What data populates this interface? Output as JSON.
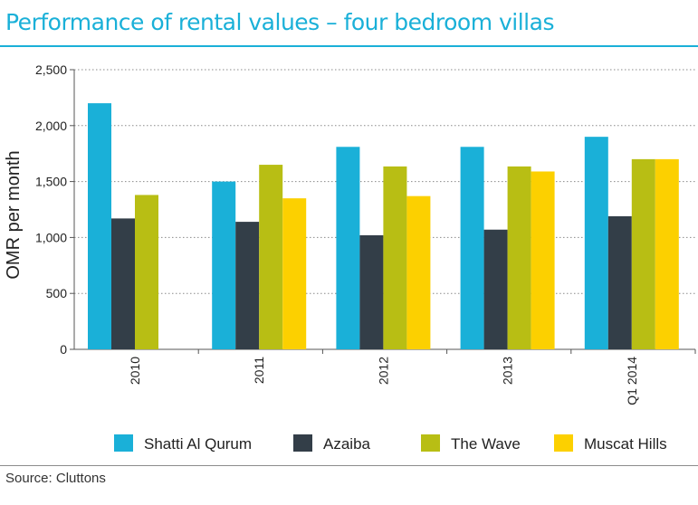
{
  "title": "Performance of rental values – four bedroom villas",
  "source": "Source: Cluttons",
  "colors": {
    "title": "#1ab0d8",
    "shatti": "#1ab0d8",
    "azaiba": "#333e48",
    "wave": "#b8be14",
    "muscat": "#fcd000"
  },
  "chart_data": {
    "type": "bar",
    "title": "Performance of rental values – four bedroom villas",
    "xlabel": "",
    "ylabel": "OMR per month",
    "ylim": [
      0,
      2500
    ],
    "yticks": [
      0,
      500,
      1000,
      1500,
      2000,
      2500
    ],
    "ytick_labels": [
      "0",
      "500",
      "1,000",
      "1,500",
      "2,000",
      "2,500"
    ],
    "grid": "horizontal dotted",
    "legend_position": "bottom",
    "categories": [
      "2010",
      "2011",
      "2012",
      "2013",
      "Q1 2014"
    ],
    "series": [
      {
        "name": "Shatti Al Qurum",
        "color": "#1ab0d8",
        "values": [
          2200,
          1500,
          1810,
          1810,
          1900
        ]
      },
      {
        "name": "Azaiba",
        "color": "#333e48",
        "values": [
          1170,
          1140,
          1020,
          1070,
          1190
        ]
      },
      {
        "name": "The Wave",
        "color": "#b8be14",
        "values": [
          1380,
          1650,
          1635,
          1635,
          1700
        ]
      },
      {
        "name": "Muscat Hills",
        "color": "#fcd000",
        "values": [
          null,
          1350,
          1370,
          1590,
          1700
        ]
      }
    ]
  }
}
